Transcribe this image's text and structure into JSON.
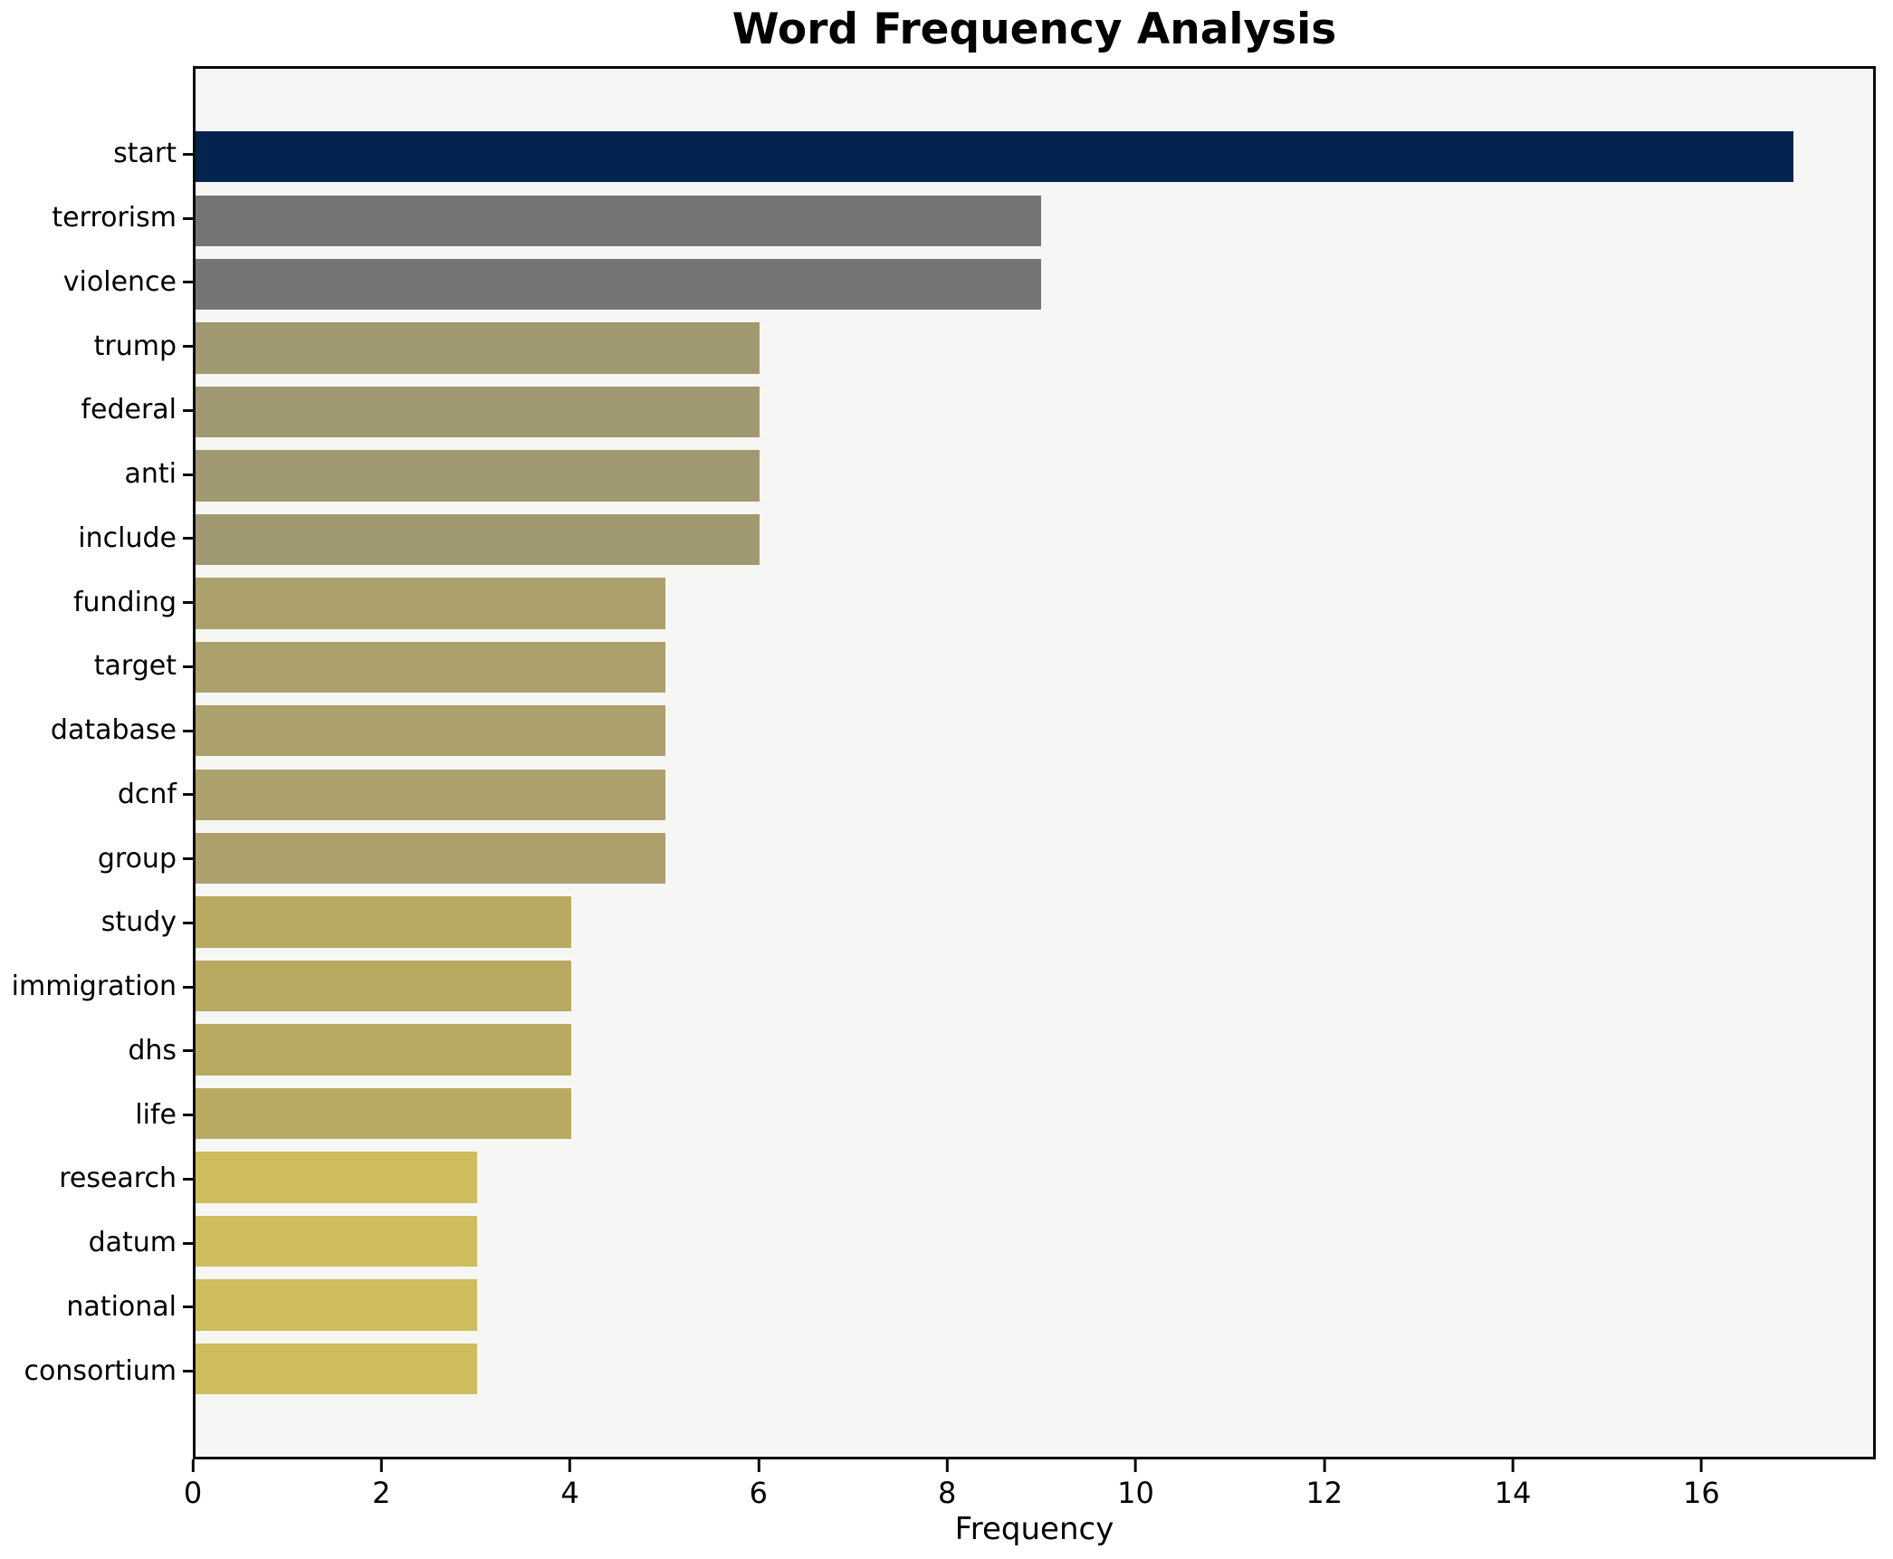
{
  "chart_data": {
    "type": "bar",
    "orientation": "horizontal",
    "title": "Word Frequency Analysis",
    "xlabel": "Frequency",
    "ylabel": "",
    "categories": [
      "start",
      "terrorism",
      "violence",
      "trump",
      "federal",
      "anti",
      "include",
      "funding",
      "target",
      "database",
      "dcnf",
      "group",
      "study",
      "immigration",
      "dhs",
      "life",
      "research",
      "datum",
      "national",
      "consortium"
    ],
    "values": [
      17,
      9,
      9,
      6,
      6,
      6,
      6,
      5,
      5,
      5,
      5,
      5,
      4,
      4,
      4,
      4,
      3,
      3,
      3,
      3
    ],
    "bar_colors": [
      "#04234e",
      "#757575",
      "#757575",
      "#a09870",
      "#a09870",
      "#a09870",
      "#a09870",
      "#aca06c",
      "#aca06c",
      "#aca06c",
      "#aca06c",
      "#aca06c",
      "#b9aa62",
      "#b9aa62",
      "#b9aa62",
      "#b9aa62",
      "#cfbc5e",
      "#cfbc5e",
      "#cfbc5e",
      "#cfbc5e"
    ],
    "xlim": [
      0,
      17.85
    ],
    "x_ticks": [
      "0",
      "2",
      "4",
      "6",
      "8",
      "10",
      "12",
      "14",
      "16"
    ],
    "x_tick_values": [
      0,
      2,
      4,
      6,
      8,
      10,
      12,
      14,
      16
    ],
    "grid": false,
    "legend": null,
    "plot_background": "#f6f6f4",
    "figure_background": "#ffffff",
    "spine_color": "#0a0a0a"
  }
}
